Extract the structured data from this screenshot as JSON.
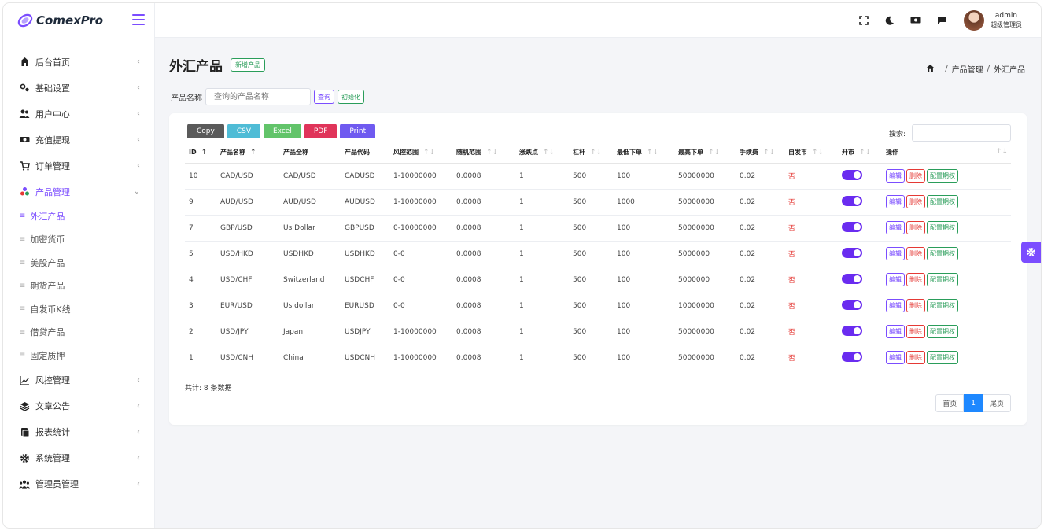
{
  "app": {
    "name": "ComexPro"
  },
  "topbar": {
    "admin_name": "admin",
    "admin_role": "超级管理员"
  },
  "sidebar": {
    "items": [
      {
        "label": "后台首页",
        "icon": "home-icon"
      },
      {
        "label": "基础设置",
        "icon": "settings-icon"
      },
      {
        "label": "用户中心",
        "icon": "users-icon"
      },
      {
        "label": "充值提现",
        "icon": "money-icon"
      },
      {
        "label": "订单管理",
        "icon": "cart-icon"
      },
      {
        "label": "产品管理",
        "icon": "product-icon",
        "active": true
      }
    ],
    "subitems": [
      {
        "label": "外汇产品",
        "active": true
      },
      {
        "label": "加密货币"
      },
      {
        "label": "美股产品"
      },
      {
        "label": "期货产品"
      },
      {
        "label": "自发币K线"
      },
      {
        "label": "借贷产品"
      },
      {
        "label": "固定质押"
      }
    ],
    "items_after": [
      {
        "label": "风控管理",
        "icon": "chart-line-icon"
      },
      {
        "label": "文章公告",
        "icon": "layers-icon"
      },
      {
        "label": "报表统计",
        "icon": "report-icon"
      },
      {
        "label": "系统管理",
        "icon": "gear-icon"
      },
      {
        "label": "管理员管理",
        "icon": "admins-icon"
      }
    ]
  },
  "page": {
    "title": "外汇产品",
    "add_button": "新增产品",
    "breadcrumb": [
      "产品管理",
      "外汇产品"
    ]
  },
  "filter": {
    "label": "产品名称",
    "placeholder": "查询的产品名称",
    "query_button": "查询",
    "reset_button": "初始化"
  },
  "export_buttons": [
    {
      "label": "Copy",
      "color": "#5a5a5a"
    },
    {
      "label": "CSV",
      "color": "#4fbcd6"
    },
    {
      "label": "Excel",
      "color": "#62c46a"
    },
    {
      "label": "PDF",
      "color": "#e0345a"
    },
    {
      "label": "Print",
      "color": "#6f5af0"
    }
  ],
  "search": {
    "label": "搜索:"
  },
  "table": {
    "headers": [
      "ID",
      "产品名称",
      "产品全称",
      "产品代码",
      "风控范围",
      "随机范围",
      "涨跌点",
      "杠杆",
      "最低下单",
      "最高下单",
      "手续费",
      "自发币",
      "开市",
      "操作"
    ],
    "rows": [
      [
        "10",
        "CAD/USD",
        "CAD/USD",
        "CADUSD",
        "1-10000000",
        "0.0008",
        "1",
        "500",
        "100",
        "50000000",
        "0.02",
        "否"
      ],
      [
        "9",
        "AUD/USD",
        "AUD/USD",
        "AUDUSD",
        "1-10000000",
        "0.0008",
        "1",
        "500",
        "1000",
        "50000000",
        "0.02",
        "否"
      ],
      [
        "7",
        "GBP/USD",
        "Us Dollar",
        "GBPUSD",
        "0-10000000",
        "0.0008",
        "1",
        "500",
        "100",
        "50000000",
        "0.02",
        "否"
      ],
      [
        "5",
        "USD/HKD",
        "USDHKD",
        "USDHKD",
        "0-0",
        "0.0008",
        "1",
        "500",
        "100",
        "5000000",
        "0.02",
        "否"
      ],
      [
        "4",
        "USD/CHF",
        "Switzerland",
        "USDCHF",
        "0-0",
        "0.0008",
        "1",
        "500",
        "100",
        "5000000",
        "0.02",
        "否"
      ],
      [
        "3",
        "EUR/USD",
        "Us dollar",
        "EURUSD",
        "0-0",
        "0.0008",
        "1",
        "500",
        "100",
        "10000000",
        "0.02",
        "否"
      ],
      [
        "2",
        "USD/JPY",
        "Japan",
        "USDJPY",
        "1-10000000",
        "0.0008",
        "1",
        "500",
        "100",
        "50000000",
        "0.02",
        "否"
      ],
      [
        "1",
        "USD/CNH",
        "China",
        "USDCNH",
        "1-10000000",
        "0.0008",
        "1",
        "500",
        "100",
        "50000000",
        "0.02",
        "否"
      ]
    ],
    "actions": [
      "编辑",
      "删除",
      "配置期权"
    ]
  },
  "total_text": "共计: 8 条数据",
  "pagination": {
    "first": "首页",
    "current": "1",
    "last": "尾页"
  },
  "colors": {
    "accent": "#7b4dff",
    "success": "#2a9d5a",
    "danger": "#e53935",
    "page_active": "#1e88ff"
  }
}
